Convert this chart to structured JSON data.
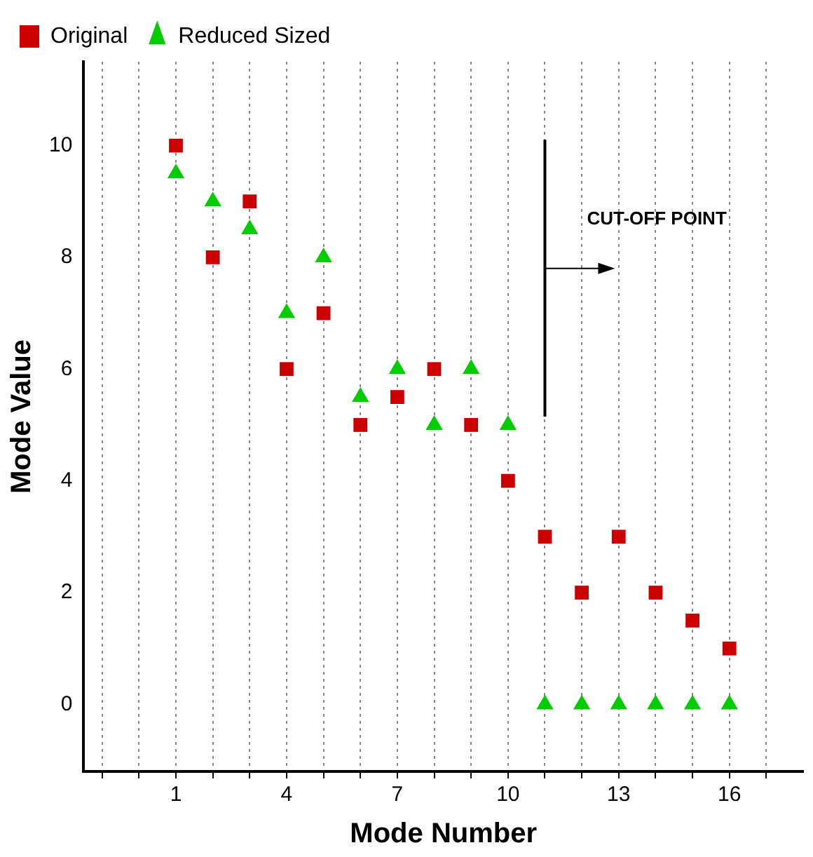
{
  "chart_data": {
    "type": "scatter",
    "xlabel": "Mode Number",
    "ylabel": "Mode Value",
    "xlim": [
      -1.5,
      18
    ],
    "xticks": [
      {
        "value": -1,
        "label": null
      },
      {
        "value": 0,
        "label": null
      },
      1,
      {
        "value": 2,
        "label": null
      },
      {
        "value": 3,
        "label": null
      },
      4,
      {
        "value": 5,
        "label": null
      },
      {
        "value": 6,
        "label": null
      },
      7,
      {
        "value": 8,
        "label": null
      },
      {
        "value": 9,
        "label": null
      },
      10,
      {
        "value": 11,
        "label": null
      },
      {
        "value": 12,
        "label": null
      },
      13,
      {
        "value": 14,
        "label": null
      },
      {
        "value": 15,
        "label": null
      },
      16,
      {
        "value": 17,
        "label": null
      }
    ],
    "ylim": [
      -1.2,
      11.5
    ],
    "yticks": [
      0,
      2,
      4,
      6,
      8,
      10
    ],
    "grid": "x",
    "legend": "top left",
    "series": [
      {
        "name": "Original",
        "color": "#cc0000",
        "marker": "square",
        "x": [
          1,
          2,
          3,
          4,
          5,
          6,
          7,
          8,
          9,
          10,
          11,
          12,
          13,
          14,
          15,
          16
        ],
        "values": [
          10,
          8,
          9,
          6,
          7,
          5,
          5.5,
          6,
          5,
          4,
          3,
          2,
          3,
          2,
          1.5,
          1
        ]
      },
      {
        "name": "Reduced Sized",
        "color": "#00cc00",
        "marker": "triangle",
        "x": [
          1,
          2,
          3,
          4,
          5,
          6,
          7,
          8,
          9,
          10,
          11,
          12,
          13,
          14,
          15,
          16
        ],
        "values": [
          9.5,
          9,
          8.5,
          7,
          8,
          5.5,
          6,
          5,
          6,
          5,
          0,
          0,
          0,
          0,
          0,
          0
        ]
      }
    ],
    "ref_lines": [
      {
        "axis": "x",
        "value": 11,
        "label": "CUT-OFF POINT"
      }
    ]
  }
}
